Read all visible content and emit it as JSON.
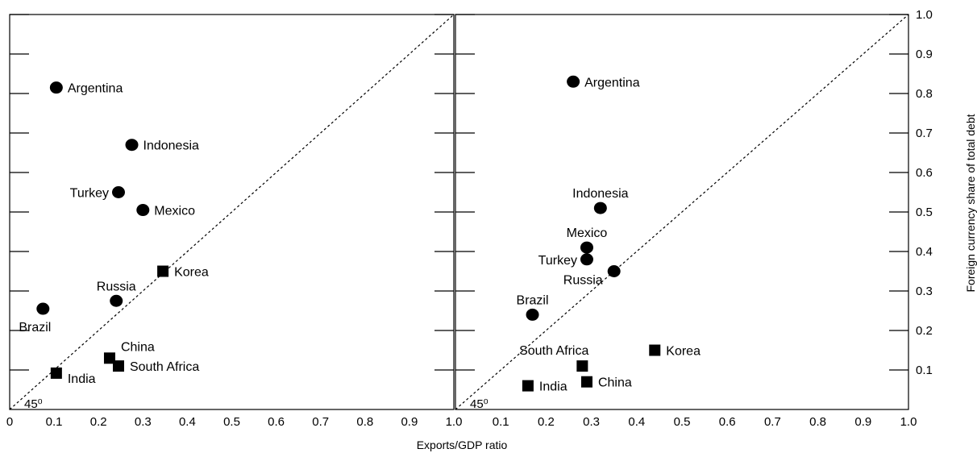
{
  "chart_data": [
    {
      "type": "scatter",
      "panel": "left",
      "xlim": [
        0,
        1.0
      ],
      "ylim": [
        0,
        1.0
      ],
      "x_ticks": [
        "0",
        "0.1",
        "0.2",
        "0.3",
        "0.4",
        "0.5",
        "0.6",
        "0.7",
        "0.8",
        "0.9",
        "1.0"
      ],
      "y_ticks": [],
      "grid": false,
      "reference_line": {
        "slope": 1,
        "style": "dashed",
        "label": "45⁰"
      },
      "points": [
        {
          "label": "Argentina",
          "x": 0.105,
          "y": 0.815,
          "marker": "circle",
          "label_side": "right"
        },
        {
          "label": "Indonesia",
          "x": 0.275,
          "y": 0.67,
          "marker": "circle",
          "label_side": "right"
        },
        {
          "label": "Turkey",
          "x": 0.245,
          "y": 0.55,
          "marker": "circle",
          "label_side": "left"
        },
        {
          "label": "Mexico",
          "x": 0.3,
          "y": 0.505,
          "marker": "circle",
          "label_side": "right"
        },
        {
          "label": "Korea",
          "x": 0.345,
          "y": 0.35,
          "marker": "square",
          "label_side": "right"
        },
        {
          "label": "Russia",
          "x": 0.24,
          "y": 0.275,
          "marker": "circle",
          "label_side": "above"
        },
        {
          "label": "Brazil",
          "x": 0.075,
          "y": 0.255,
          "marker": "circle",
          "label_side": "below"
        },
        {
          "label": "China",
          "x": 0.225,
          "y": 0.13,
          "marker": "square",
          "label_side": "above-right"
        },
        {
          "label": "South Africa",
          "x": 0.245,
          "y": 0.11,
          "marker": "square",
          "label_side": "right"
        },
        {
          "label": "India",
          "x": 0.105,
          "y": 0.092,
          "marker": "square",
          "label_side": "below-right"
        }
      ]
    },
    {
      "type": "scatter",
      "panel": "right",
      "xlim": [
        0,
        1.0
      ],
      "ylim": [
        0,
        1.0
      ],
      "x_ticks": [
        "",
        "0.1",
        "0.2",
        "0.3",
        "0.4",
        "0.5",
        "0.6",
        "0.7",
        "0.8",
        "0.9",
        "1.0"
      ],
      "y_ticks": [
        "0.1",
        "0.2",
        "0.3",
        "0.4",
        "0.5",
        "0.6",
        "0.7",
        "0.8",
        "0.9",
        "1.0"
      ],
      "grid": false,
      "reference_line": {
        "slope": 1,
        "style": "dashed",
        "label": "45⁰"
      },
      "points": [
        {
          "label": "Argentina",
          "x": 0.26,
          "y": 0.83,
          "marker": "circle",
          "label_side": "right"
        },
        {
          "label": "Indonesia",
          "x": 0.32,
          "y": 0.51,
          "marker": "circle",
          "label_side": "above"
        },
        {
          "label": "Mexico",
          "x": 0.29,
          "y": 0.41,
          "marker": "circle",
          "label_side": "above"
        },
        {
          "label": "Turkey",
          "x": 0.29,
          "y": 0.38,
          "marker": "circle",
          "label_side": "left"
        },
        {
          "label": "Russia",
          "x": 0.35,
          "y": 0.35,
          "marker": "circle",
          "label_side": "below-left"
        },
        {
          "label": "Brazil",
          "x": 0.17,
          "y": 0.24,
          "marker": "circle",
          "label_side": "above"
        },
        {
          "label": "South Africa",
          "x": 0.28,
          "y": 0.11,
          "marker": "square",
          "label_side": "above-left"
        },
        {
          "label": "Korea",
          "x": 0.44,
          "y": 0.15,
          "marker": "square",
          "label_side": "right"
        },
        {
          "label": "China",
          "x": 0.29,
          "y": 0.07,
          "marker": "square",
          "label_side": "right"
        },
        {
          "label": "India",
          "x": 0.16,
          "y": 0.06,
          "marker": "square",
          "label_side": "right"
        }
      ]
    }
  ],
  "labels": {
    "xlabel": "Exports/GDP ratio",
    "ylabel": "Foreign currency share of total debt",
    "angle_label": "45⁰"
  },
  "colors": {
    "ink": "#000000",
    "background": "#ffffff"
  }
}
